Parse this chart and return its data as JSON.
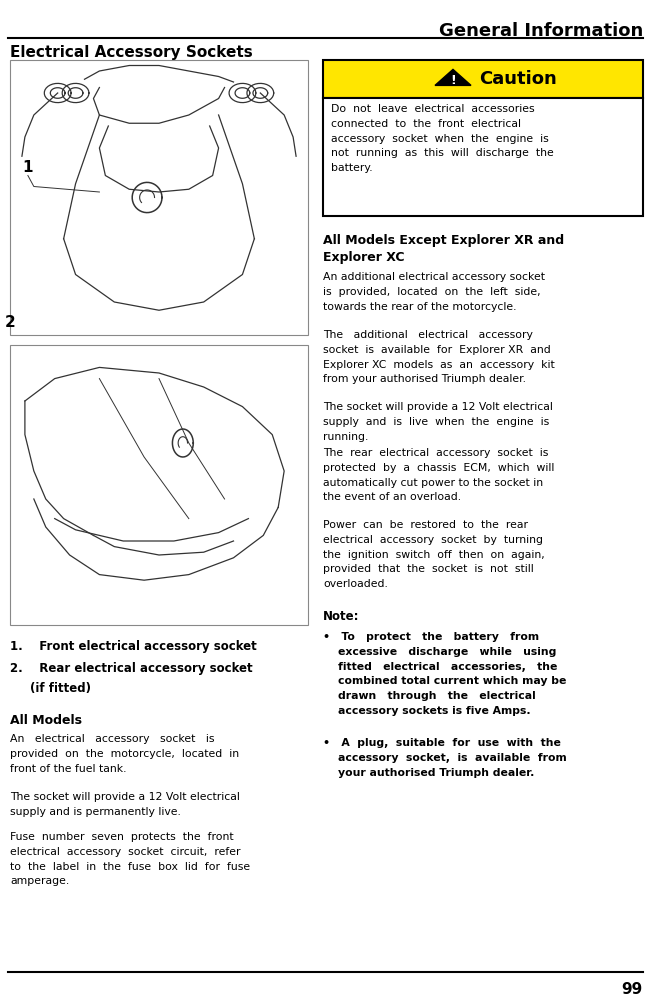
{
  "page_title": "General Information",
  "page_number": "99",
  "section_title": "Electrical Accessory Sockets",
  "caution_title": "Caution",
  "caution_text": "Do  not  leave  electrical  accessories\nconnected  to  the  front  electrical\naccessory  socket  when  the  engine  is\nnot  running  as  this  will  discharge  the\nbattery.",
  "caution_bg": "#FFE600",
  "caution_border": "#000000",
  "all_models_heading": "All Models",
  "all_models_text1": "An   electrical   accessory   socket   is\nprovided  on  the  motorcycle,  located  in\nfront of the fuel tank.",
  "all_models_text2": "The socket will provide a 12 Volt electrical\nsupply and is permanently live.",
  "all_models_text3": "Fuse  number  seven  protects  the  front\nelectrical  accessory  socket  circuit,  refer\nto  the  label  in  the  fuse  box  lid  for  fuse\namperage.",
  "except_heading": "All Models Except Explorer XR and\nExplorer XC",
  "except_text1": "An additional electrical accessory socket\nis  provided,  located  on  the  left  side,\ntowards the rear of the motorcycle.",
  "except_text2": "The   additional   electrical   accessory\nsocket  is  available  for  Explorer XR  and\nExplorer XC  models  as  an  accessory  kit\nfrom your authorised Triumph dealer.",
  "except_text3": "The socket will provide a 12 Volt electrical\nsupply  and  is  live  when  the  engine  is\nrunning.",
  "except_text4": "The  rear  electrical  accessory  socket  is\nprotected  by  a  chassis  ECM,  which  will\nautomatically cut power to the socket in\nthe event of an overload.",
  "except_text5": "Power  can  be  restored  to  the  rear\nelectrical  accessory  socket  by  turning\nthe  ignition  switch  off  then  on  again,\nprovided  that  the  socket  is  not  still\noverloaded.",
  "note_heading": "Note:",
  "note_bullet1": "•   To   protect   the   battery   from\n    excessive   discharge   while   using\n    fitted   electrical   accessories,   the\n    combined total current which may be\n    drawn   through   the   electrical\n    accessory sockets is five Amps.",
  "note_bullet2": "•   A  plug,  suitable  for  use  with  the\n    accessory  socket,  is  available  from\n    your authorised Triumph dealer.",
  "bg_color": "#ffffff",
  "text_color": "#000000",
  "font": "monospace"
}
